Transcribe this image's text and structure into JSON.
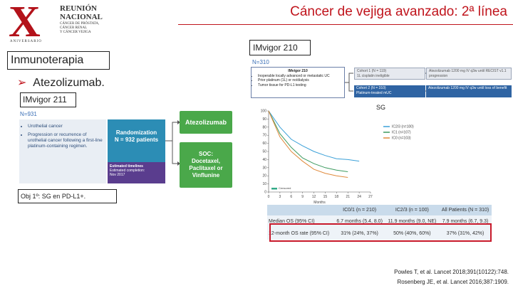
{
  "logo": {
    "mark": "X",
    "lines": [
      "REUNIÓN",
      "NACIONAL"
    ],
    "subtitle": [
      "CÁNCER DE PRÓSTATA,",
      "CÁNCER RENAL",
      "Y CÁNCER VEJIGA"
    ],
    "tag": "ANIVERSARIO"
  },
  "title": "Cáncer de vejiga avanzado: 2ª línea",
  "left": {
    "section": "Inmunoterapia",
    "drug": "Atezolizumab.",
    "trial": "IMvigor 211",
    "n": "N=931",
    "diagram": {
      "bullets": [
        "Urothelial cancer",
        "Progression or recurrence of urothelial cancer following a first-line platinum-containing regimen."
      ],
      "randomization": [
        "Randomization",
        "N = 932 patients"
      ],
      "timeline": [
        "Estimated timelines",
        "Estimated completion:",
        "Nov 2017"
      ],
      "arm1": "Atezolizumab",
      "arm2": [
        "SOC:",
        "Docetaxel,",
        "Paclitaxel or",
        "Vinflunine"
      ]
    },
    "objective": "Obj 1º: SG en PD-L1+."
  },
  "right": {
    "trial": "IMvigor 210",
    "n": "N=310",
    "diagram": {
      "title": "IMvigor 210",
      "criteria": [
        "Inoperable locally advanced or metastatic UC",
        "Prior platinum (1L) or no/dialysis",
        "Tumor tissue for PD-L1 testing"
      ],
      "cohorts": [
        {
          "label": "Cohort 1 (N = 119)",
          "desc": "1L cisplatin ineligible",
          "treatment": "Atezolizumab 1200 mg IV q3w until RECIST v1.1 progression"
        },
        {
          "label": "Cohort 2 (N = 310)",
          "desc": "Platinum-treated mUC",
          "treatment": "Atezolizumab 1200 mg IV q3w until loss of benefit"
        }
      ]
    },
    "km_label": "SG",
    "km_chart": {
      "type": "line",
      "x": [
        0,
        3,
        6,
        9,
        12,
        15,
        18,
        21,
        24
      ],
      "xlim": [
        0,
        27
      ],
      "xticks": [
        0,
        3,
        6,
        9,
        12,
        15,
        18,
        21,
        24,
        27
      ],
      "ylim": [
        0,
        100
      ],
      "yticks": [
        0,
        10,
        20,
        30,
        40,
        50,
        60,
        70,
        80,
        90,
        100
      ],
      "xlabel": "Months",
      "censored": "Censored",
      "series": [
        {
          "name": "IC2/3 (n=100)",
          "color": "#3aa0d8",
          "values": [
            100,
            80,
            65,
            57,
            50,
            45,
            41,
            40,
            38
          ]
        },
        {
          "name": "IC1 (n=107)",
          "color": "#3c9a5f",
          "values": [
            100,
            72,
            55,
            42,
            35,
            30,
            27,
            25,
            null
          ]
        },
        {
          "name": "IC0 (n=103)",
          "color": "#e08a3c",
          "values": [
            100,
            68,
            50,
            38,
            28,
            23,
            20,
            18,
            null
          ]
        }
      ]
    },
    "table": {
      "header": [
        "IC0/1 (n = 210)",
        "IC2/3 (n = 100)",
        "All Patients (N = 310)"
      ],
      "rows": [
        [
          "Median OS (95% CI)",
          "6.7 months (5.4, 8.0)",
          "11.9 months (9.0, NE)",
          "7.9 months (6.7, 9.3)"
        ],
        [
          "12-month OS rate (95% CI)",
          "31% (24%, 37%)",
          "50% (40%, 60%)",
          "37% (31%, 42%)"
        ]
      ]
    }
  },
  "references": [
    "Powles T, et al. Lancet 2018;391(10122):748.",
    "Rosenberg JE, et al. Lancet 2016;387:1909."
  ]
}
